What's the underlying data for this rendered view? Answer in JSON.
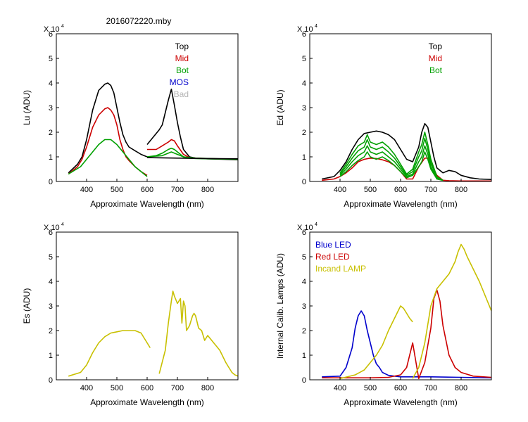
{
  "figure_title": "2016072220.mby",
  "chart_data": [
    {
      "id": "lu",
      "type": "line",
      "title": "2016072220.mby",
      "xlabel": "Approximate Wavelength (nm)",
      "ylabel": "Lu (ADU)",
      "exponent_label": "X 10",
      "exponent_power": "4",
      "xlim": [
        300,
        900
      ],
      "ylim": [
        0,
        6
      ],
      "xticks": [
        400,
        500,
        600,
        700,
        800
      ],
      "yticks": [
        0,
        1,
        2,
        3,
        4,
        5,
        6
      ],
      "legend": [
        {
          "label": "Top",
          "color": "#000000"
        },
        {
          "label": "Mid",
          "color": "#cc0000"
        },
        {
          "label": "Bot",
          "color": "#00a000"
        },
        {
          "label": "MOS",
          "color": "#0000cc"
        },
        {
          "label": "Bad",
          "color": "#b4b4b4"
        }
      ],
      "series": [
        {
          "name": "Top seg1",
          "color": "#000000",
          "x": [
            340,
            370,
            385,
            400,
            420,
            440,
            460,
            470,
            480,
            490,
            500,
            510,
            520,
            530,
            540,
            560,
            580,
            600
          ],
          "y": [
            0.35,
            0.7,
            1.0,
            1.7,
            2.9,
            3.7,
            3.95,
            4.0,
            3.9,
            3.6,
            3.0,
            2.4,
            1.9,
            1.6,
            1.4,
            1.25,
            1.1,
            1.0
          ]
        },
        {
          "name": "Mid seg1",
          "color": "#cc0000",
          "x": [
            340,
            370,
            385,
            400,
            420,
            440,
            460,
            470,
            480,
            490,
            500,
            510,
            520,
            530,
            540,
            560,
            580,
            600
          ],
          "y": [
            0.3,
            0.6,
            0.9,
            1.4,
            2.2,
            2.7,
            2.95,
            3.0,
            2.9,
            2.7,
            2.3,
            1.7,
            1.3,
            1.0,
            0.85,
            0.6,
            0.4,
            0.25
          ]
        },
        {
          "name": "Bot seg1",
          "color": "#00a000",
          "x": [
            340,
            380,
            400,
            420,
            440,
            460,
            480,
            500,
            520,
            540,
            560,
            580,
            600
          ],
          "y": [
            0.3,
            0.6,
            0.9,
            1.2,
            1.5,
            1.7,
            1.7,
            1.5,
            1.2,
            0.9,
            0.6,
            0.4,
            0.2
          ]
        },
        {
          "name": "Top seg2",
          "color": "#000000",
          "x": [
            600,
            620,
            640,
            650,
            660,
            670,
            680,
            690,
            700,
            710,
            720,
            740,
            760,
            800,
            850,
            900
          ],
          "y": [
            1.5,
            1.8,
            2.1,
            2.3,
            2.8,
            3.3,
            3.75,
            3.1,
            2.4,
            1.8,
            1.3,
            1.0,
            0.95,
            0.92,
            0.9,
            0.88
          ]
        },
        {
          "name": "Mid seg2",
          "color": "#cc0000",
          "x": [
            600,
            630,
            650,
            670,
            680,
            690,
            700,
            720,
            740,
            760,
            800,
            900
          ],
          "y": [
            1.3,
            1.3,
            1.45,
            1.6,
            1.7,
            1.65,
            1.45,
            1.1,
            0.97,
            0.95,
            0.93,
            0.9
          ]
        },
        {
          "name": "Bot seg2",
          "color": "#00a000",
          "x": [
            600,
            630,
            650,
            670,
            680,
            690,
            700,
            720,
            740,
            760,
            800,
            900
          ],
          "y": [
            1.0,
            1.05,
            1.15,
            1.3,
            1.35,
            1.3,
            1.2,
            1.0,
            0.95,
            0.93,
            0.92,
            0.9
          ]
        },
        {
          "name": "Bot seg2b",
          "color": "#00a000",
          "x": [
            600,
            650,
            680,
            700,
            720,
            760,
            900
          ],
          "y": [
            1.0,
            1.05,
            1.2,
            1.1,
            1.0,
            0.95,
            0.9
          ]
        },
        {
          "name": "Flat",
          "color": "#000000",
          "x": [
            600,
            700,
            800,
            900
          ],
          "y": [
            0.97,
            0.95,
            0.93,
            0.92
          ]
        }
      ]
    },
    {
      "id": "ed",
      "type": "line",
      "title": "",
      "xlabel": "Approximate Wavelength (nm)",
      "ylabel": "Ed  (ADU)",
      "exponent_label": "X 10",
      "exponent_power": "4",
      "xlim": [
        300,
        900
      ],
      "ylim": [
        0,
        6
      ],
      "xticks": [
        400,
        500,
        600,
        700,
        800
      ],
      "yticks": [
        0,
        1,
        2,
        3,
        4,
        5,
        6
      ],
      "legend": [
        {
          "label": "Top",
          "color": "#000000"
        },
        {
          "label": "Mid",
          "color": "#cc0000"
        },
        {
          "label": "Bot",
          "color": "#00a000"
        }
      ],
      "series": [
        {
          "name": "Top",
          "color": "#000000",
          "x": [
            340,
            380,
            400,
            420,
            440,
            460,
            480,
            500,
            520,
            540,
            560,
            580,
            600,
            620,
            640,
            660,
            670,
            680,
            690,
            700,
            710,
            720,
            740,
            760,
            780,
            800,
            830,
            860,
            900
          ],
          "y": [
            0.1,
            0.2,
            0.45,
            0.8,
            1.3,
            1.7,
            1.95,
            2.0,
            2.05,
            2.0,
            1.9,
            1.7,
            1.3,
            0.9,
            0.8,
            1.4,
            2.0,
            2.35,
            2.2,
            1.6,
            1.0,
            0.55,
            0.35,
            0.45,
            0.4,
            0.25,
            0.15,
            0.1,
            0.08
          ]
        },
        {
          "name": "Mid",
          "color": "#cc0000",
          "x": [
            340,
            380,
            400,
            420,
            440,
            460,
            480,
            500,
            520,
            540,
            560,
            580,
            600,
            620,
            640,
            660,
            680,
            690,
            700,
            720,
            740,
            760,
            800,
            900
          ],
          "y": [
            0.05,
            0.1,
            0.2,
            0.35,
            0.55,
            0.8,
            0.9,
            0.95,
            0.93,
            0.88,
            0.8,
            0.65,
            0.4,
            0.1,
            0.1,
            0.6,
            0.95,
            0.95,
            0.75,
            0.25,
            0.05,
            0.03,
            0.02,
            0.02
          ]
        },
        {
          "name": "Bot a",
          "color": "#00a000",
          "x": [
            400,
            420,
            440,
            460,
            480,
            490,
            500,
            520,
            540,
            560,
            580,
            600,
            620,
            640,
            660,
            670,
            680,
            690,
            700,
            720,
            740
          ],
          "y": [
            0.35,
            0.7,
            1.1,
            1.45,
            1.6,
            1.9,
            1.6,
            1.5,
            1.6,
            1.4,
            1.1,
            0.7,
            0.3,
            0.5,
            1.2,
            1.5,
            2.0,
            1.5,
            0.9,
            0.2,
            0.05
          ]
        },
        {
          "name": "Bot b",
          "color": "#00a000",
          "x": [
            400,
            420,
            440,
            460,
            480,
            490,
            500,
            520,
            540,
            560,
            580,
            600,
            620,
            640,
            660,
            670,
            680,
            690,
            700,
            720,
            740
          ],
          "y": [
            0.3,
            0.6,
            0.95,
            1.25,
            1.4,
            1.7,
            1.4,
            1.3,
            1.4,
            1.2,
            0.95,
            0.6,
            0.25,
            0.4,
            1.0,
            1.25,
            1.75,
            1.3,
            0.75,
            0.15,
            0.05
          ]
        },
        {
          "name": "Bot c",
          "color": "#00a000",
          "x": [
            400,
            420,
            440,
            460,
            480,
            490,
            500,
            520,
            540,
            560,
            580,
            600,
            620,
            640,
            660,
            670,
            680,
            690,
            700,
            720,
            740
          ],
          "y": [
            0.25,
            0.5,
            0.8,
            1.05,
            1.2,
            1.45,
            1.2,
            1.1,
            1.2,
            1.0,
            0.8,
            0.5,
            0.2,
            0.3,
            0.8,
            1.0,
            1.45,
            1.1,
            0.6,
            0.1,
            0.05
          ]
        },
        {
          "name": "Bot d",
          "color": "#00a000",
          "x": [
            400,
            420,
            440,
            460,
            480,
            490,
            500,
            520,
            540,
            560,
            580,
            600,
            620,
            640,
            660,
            670,
            680,
            690,
            700,
            720,
            740
          ],
          "y": [
            0.2,
            0.4,
            0.65,
            0.85,
            1.0,
            1.2,
            1.0,
            0.9,
            1.0,
            0.85,
            0.65,
            0.4,
            0.15,
            0.25,
            0.6,
            0.8,
            1.2,
            0.9,
            0.5,
            0.1,
            0.05
          ]
        }
      ]
    },
    {
      "id": "es",
      "type": "line",
      "title": "",
      "xlabel": "Approximate Wavelength (nm)",
      "ylabel": "Es  (ADU)",
      "exponent_label": "X 10",
      "exponent_power": "4",
      "xlim": [
        300,
        900
      ],
      "ylim": [
        0,
        6
      ],
      "xticks": [
        400,
        500,
        600,
        700,
        800
      ],
      "yticks": [
        0,
        1,
        2,
        3,
        4,
        5,
        6
      ],
      "legend": [],
      "series": [
        {
          "name": "Es seg1",
          "color": "#c8c000",
          "x": [
            340,
            380,
            400,
            420,
            440,
            460,
            480,
            500,
            520,
            540,
            560,
            580,
            600,
            610
          ],
          "y": [
            0.15,
            0.3,
            0.6,
            1.1,
            1.5,
            1.75,
            1.9,
            1.95,
            2.0,
            2.0,
            2.0,
            1.9,
            1.5,
            1.3
          ]
        },
        {
          "name": "Es seg2",
          "color": "#c8c000",
          "x": [
            640,
            660,
            670,
            680,
            685,
            690,
            700,
            710,
            715,
            720,
            725,
            730,
            740,
            750,
            755,
            760,
            770,
            780,
            790,
            800,
            820,
            840,
            860,
            870,
            880,
            890,
            900
          ],
          "y": [
            0.25,
            1.2,
            2.3,
            3.2,
            3.6,
            3.4,
            3.1,
            3.3,
            2.3,
            3.2,
            3.0,
            2.0,
            2.2,
            2.6,
            2.7,
            2.6,
            2.1,
            2.0,
            1.6,
            1.8,
            1.5,
            1.2,
            0.7,
            0.5,
            0.3,
            0.2,
            0.15
          ]
        }
      ]
    },
    {
      "id": "lamps",
      "type": "line",
      "title": "",
      "xlabel": "Approximate Wavelength (nm)",
      "ylabel": "Internal Calib. Lamps (ADU)",
      "exponent_label": "X 10",
      "exponent_power": "4",
      "xlim": [
        300,
        900
      ],
      "ylim": [
        0,
        6
      ],
      "xticks": [
        400,
        500,
        600,
        700,
        800
      ],
      "yticks": [
        0,
        1,
        2,
        3,
        4,
        5,
        6
      ],
      "legend": [
        {
          "label": "Blue LED",
          "color": "#0000cc"
        },
        {
          "label": "Red LED",
          "color": "#cc0000"
        },
        {
          "label": "Incand LAMP",
          "color": "#c8c000"
        }
      ],
      "series": [
        {
          "name": "Blue LED",
          "color": "#0000cc",
          "x": [
            340,
            400,
            420,
            440,
            450,
            460,
            470,
            480,
            490,
            500,
            510,
            520,
            530,
            540,
            560,
            580,
            600,
            650,
            700,
            800,
            900
          ],
          "y": [
            0.12,
            0.15,
            0.5,
            1.3,
            2.1,
            2.6,
            2.8,
            2.6,
            2.0,
            1.5,
            1.0,
            0.65,
            0.5,
            0.3,
            0.18,
            0.15,
            0.12,
            0.12,
            0.12,
            0.1,
            0.08
          ]
        },
        {
          "name": "Red LED",
          "color": "#cc0000",
          "x": [
            340,
            500,
            560,
            600,
            620,
            640,
            660,
            680,
            700,
            710,
            720,
            730,
            740,
            760,
            780,
            800,
            840,
            900
          ],
          "y": [
            0.08,
            0.08,
            0.1,
            0.2,
            0.5,
            1.5,
            0.05,
            0.7,
            2.1,
            3.3,
            3.65,
            3.2,
            2.2,
            1.0,
            0.5,
            0.3,
            0.15,
            0.1
          ]
        },
        {
          "name": "Incand seg1",
          "color": "#c8c000",
          "x": [
            400,
            450,
            480,
            500,
            520,
            540,
            560,
            580,
            600,
            610,
            620,
            630,
            640
          ],
          "y": [
            0.05,
            0.2,
            0.4,
            0.7,
            1.0,
            1.4,
            2.0,
            2.5,
            3.0,
            2.9,
            2.7,
            2.5,
            2.35
          ]
        },
        {
          "name": "Incand seg2",
          "color": "#c8c000",
          "x": [
            640,
            660,
            680,
            700,
            720,
            740,
            760,
            780,
            790,
            800,
            810,
            820,
            840,
            860,
            880,
            900
          ],
          "y": [
            0.05,
            0.5,
            1.5,
            3.0,
            3.7,
            4.0,
            4.3,
            4.8,
            5.2,
            5.5,
            5.3,
            5.0,
            4.5,
            4.0,
            3.4,
            2.8
          ]
        }
      ]
    }
  ]
}
